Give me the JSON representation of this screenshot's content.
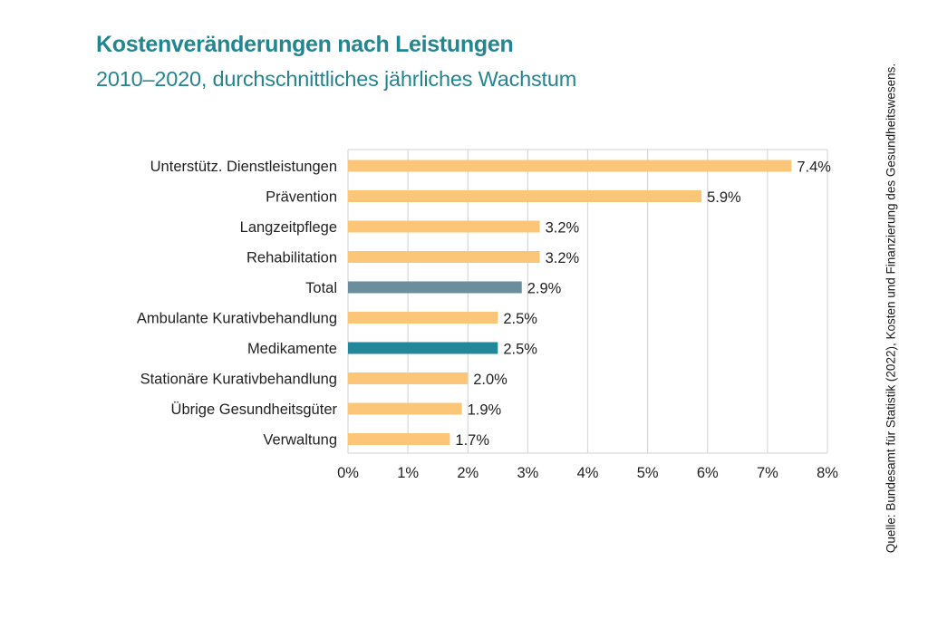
{
  "header": {
    "title": "Kostenveränderungen nach Leistungen",
    "subtitle": "2010–2020, durchschnittliches jährliches Wachstum"
  },
  "source": "Quelle: Bundesamt für Statistik (2022), Kosten und Finanzierung des Gesundheitswesens.",
  "colors": {
    "title": "#22858f",
    "default_bar": "#fbc677",
    "total_bar": "#6b8e9c",
    "highlight_bar": "#23879a",
    "grid": "#d9d9d9",
    "text": "#222222"
  },
  "chart_data": {
    "type": "bar",
    "orientation": "horizontal",
    "title": "Kostenveränderungen nach Leistungen",
    "subtitle": "2010–2020, durchschnittliches jährliches Wachstum",
    "xlabel": "",
    "ylabel": "",
    "xlim": [
      0,
      8
    ],
    "grid": true,
    "legend": "none",
    "x_ticks": [
      0,
      1,
      2,
      3,
      4,
      5,
      6,
      7,
      8
    ],
    "x_tick_labels": [
      "0%",
      "1%",
      "2%",
      "3%",
      "4%",
      "5%",
      "6%",
      "7%",
      "8%"
    ],
    "categories": [
      "Unterstütz. Dienstleistungen",
      "Prävention",
      "Langzeitpflege",
      "Rehabilitation",
      "Total",
      "Ambulante Kurativbehandlung",
      "Medikamente",
      "Stationäre Kurativbehandlung",
      "Übrige Gesundheitsgüter",
      "Verwaltung"
    ],
    "values": [
      7.4,
      5.9,
      3.2,
      3.2,
      2.9,
      2.5,
      2.5,
      2.0,
      1.9,
      1.7
    ],
    "data_labels": [
      "7.4%",
      "5.9%",
      "3.2%",
      "3.2%",
      "2.9%",
      "2.5%",
      "2.5%",
      "2.0%",
      "1.9%",
      "1.7%"
    ],
    "bar_kind": [
      "default",
      "default",
      "default",
      "default",
      "total",
      "default",
      "highlight",
      "default",
      "default",
      "default"
    ],
    "unit": "%"
  }
}
